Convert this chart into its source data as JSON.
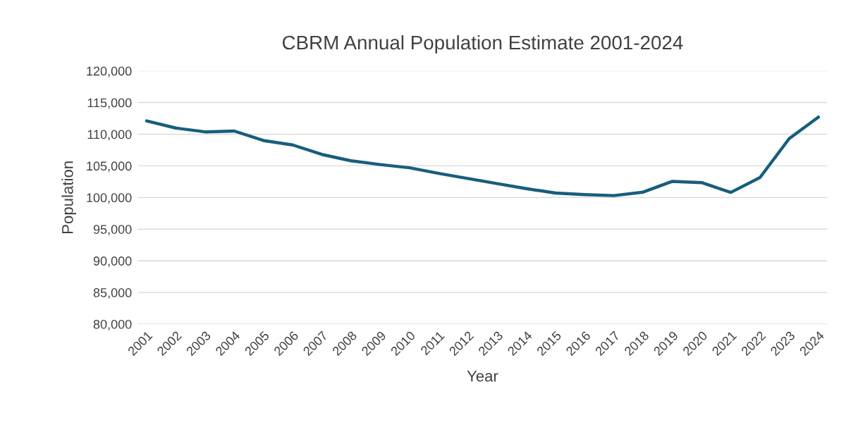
{
  "chart_data": {
    "type": "line",
    "title": "CBRM Annual Population Estimate 2001-2024",
    "xlabel": "Year",
    "ylabel": "Population",
    "categories": [
      "2001",
      "2002",
      "2003",
      "2004",
      "2005",
      "2006",
      "2007",
      "2008",
      "2009",
      "2010",
      "2011",
      "2012",
      "2013",
      "2014",
      "2015",
      "2016",
      "2017",
      "2018",
      "2019",
      "2020",
      "2021",
      "2022",
      "2023",
      "2024"
    ],
    "series": [
      {
        "color": "#185e7c",
        "values": [
          112100,
          110970,
          110370,
          110500,
          109000,
          108300,
          106800,
          105800,
          105200,
          104700,
          103800,
          103000,
          102200,
          101400,
          100700,
          100450,
          100300,
          100850,
          102550,
          102350,
          100800,
          103150,
          109300,
          112700
        ]
      }
    ],
    "ylim": [
      80000,
      120000
    ],
    "yticks": [
      {
        "value": 80000,
        "label": "80,000"
      },
      {
        "value": 85000,
        "label": "85,000"
      },
      {
        "value": 90000,
        "label": "90,000"
      },
      {
        "value": 95000,
        "label": "95,000"
      },
      {
        "value": 100000,
        "label": "100,000"
      },
      {
        "value": 105000,
        "label": "105,000"
      },
      {
        "value": 110000,
        "label": "110,000"
      },
      {
        "value": 115000,
        "label": "115,000"
      },
      {
        "value": 120000,
        "label": "120,000"
      }
    ],
    "grid": "y",
    "legend": false,
    "marker": "none",
    "line_style": "solid"
  }
}
